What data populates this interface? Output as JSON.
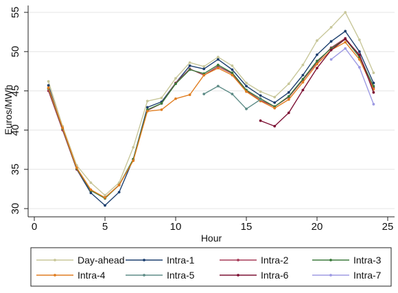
{
  "chart_data": {
    "type": "line",
    "title": "",
    "xlabel": "Hour",
    "ylabel": "Euros/MWh",
    "xlim": [
      0,
      25
    ],
    "ylim": [
      30,
      55
    ],
    "x_ticks": [
      0,
      5,
      10,
      15,
      20,
      25
    ],
    "y_ticks": [
      30,
      35,
      40,
      45,
      50,
      55
    ],
    "grid": "horizontal",
    "legend_position": "bottom",
    "series": [
      {
        "name": "Day-ahead",
        "color": "#c8c79a",
        "x": [
          1,
          2,
          3,
          4,
          5,
          6,
          7,
          8,
          9,
          10,
          11,
          12,
          13,
          14,
          15,
          16,
          17,
          18,
          19,
          20,
          21,
          22,
          23,
          24
        ],
        "y": [
          46.2,
          40.5,
          35.5,
          33.3,
          31.7,
          33.3,
          37.8,
          43.7,
          44.1,
          46.6,
          48.6,
          48.1,
          49.3,
          48.2,
          46.0,
          44.9,
          44.2,
          45.9,
          48.3,
          51.4,
          53.1,
          55.0,
          51.5,
          47.3
        ]
      },
      {
        "name": "Intra-1",
        "color": "#1c3f6e",
        "x": [
          1,
          2,
          3,
          4,
          5,
          6,
          7,
          8,
          9,
          10,
          11,
          12,
          13,
          14,
          15,
          16,
          17,
          18,
          19,
          20,
          21,
          22,
          23,
          24
        ],
        "y": [
          45.7,
          40.1,
          35.0,
          32.0,
          30.4,
          32.1,
          36.3,
          42.9,
          43.6,
          46.0,
          48.2,
          47.8,
          49.0,
          47.7,
          45.6,
          44.4,
          43.5,
          44.8,
          47.0,
          49.6,
          51.3,
          52.6,
          50.0,
          46.0
        ]
      },
      {
        "name": "Intra-2",
        "color": "#a53a57",
        "x": [
          1,
          2,
          3,
          4,
          5,
          6,
          7,
          8,
          9,
          10,
          11,
          12,
          13,
          14,
          15,
          16,
          17,
          18,
          19,
          20,
          21,
          22,
          23,
          24
        ],
        "y": [
          45.0,
          40.0,
          35.0,
          32.3,
          31.4,
          33.0,
          36.2,
          42.5,
          43.4,
          46.0,
          47.8,
          47.0,
          48.1,
          47.2,
          45.0,
          43.8,
          43.0,
          44.2,
          46.4,
          48.6,
          50.5,
          51.7,
          49.5,
          45.4
        ]
      },
      {
        "name": "Intra-3",
        "color": "#3b7a3b",
        "x": [
          1,
          2,
          3,
          4,
          5,
          6,
          7,
          8,
          9,
          10,
          11,
          12,
          13,
          14,
          15,
          16,
          17,
          18,
          19,
          20,
          21,
          22,
          23,
          24
        ],
        "y": [
          45.3,
          40.2,
          35.1,
          32.3,
          31.3,
          33.0,
          36.3,
          42.6,
          43.4,
          45.9,
          47.7,
          47.2,
          48.3,
          47.3,
          45.1,
          44.0,
          43.0,
          44.3,
          46.5,
          48.8,
          50.4,
          51.6,
          49.3,
          45.6
        ]
      },
      {
        "name": "Intra-4",
        "color": "#e07d20",
        "x": [
          1,
          2,
          3,
          4,
          5,
          6,
          7,
          8,
          9,
          10,
          11,
          12,
          13,
          14,
          15,
          16,
          17,
          18,
          19,
          20,
          21,
          22,
          23,
          24
        ],
        "y": [
          45.4,
          40.3,
          35.2,
          32.4,
          31.4,
          33.0,
          36.1,
          42.4,
          42.6,
          44.0,
          44.5,
          47.0,
          47.9,
          47.0,
          44.9,
          43.7,
          42.8,
          43.9,
          46.1,
          48.4,
          50.2,
          51.2,
          49.0,
          45.2
        ]
      },
      {
        "name": "Intra-5",
        "color": "#5e8c87",
        "x": [
          12,
          13,
          14,
          15,
          16
        ],
        "y": [
          44.6,
          45.6,
          44.6,
          42.7,
          43.9
        ]
      },
      {
        "name": "Intra-6",
        "color": "#7d1034",
        "x": [
          16,
          17,
          18,
          19,
          20,
          21,
          22,
          23,
          24
        ],
        "y": [
          41.2,
          40.5,
          42.2,
          45.1,
          47.9,
          50.2,
          51.6,
          49.6,
          44.8
        ]
      },
      {
        "name": "Intra-7",
        "color": "#9d9ae3",
        "x": [
          21,
          22,
          23,
          24
        ],
        "y": [
          49.0,
          50.4,
          48.0,
          43.3
        ]
      }
    ]
  }
}
